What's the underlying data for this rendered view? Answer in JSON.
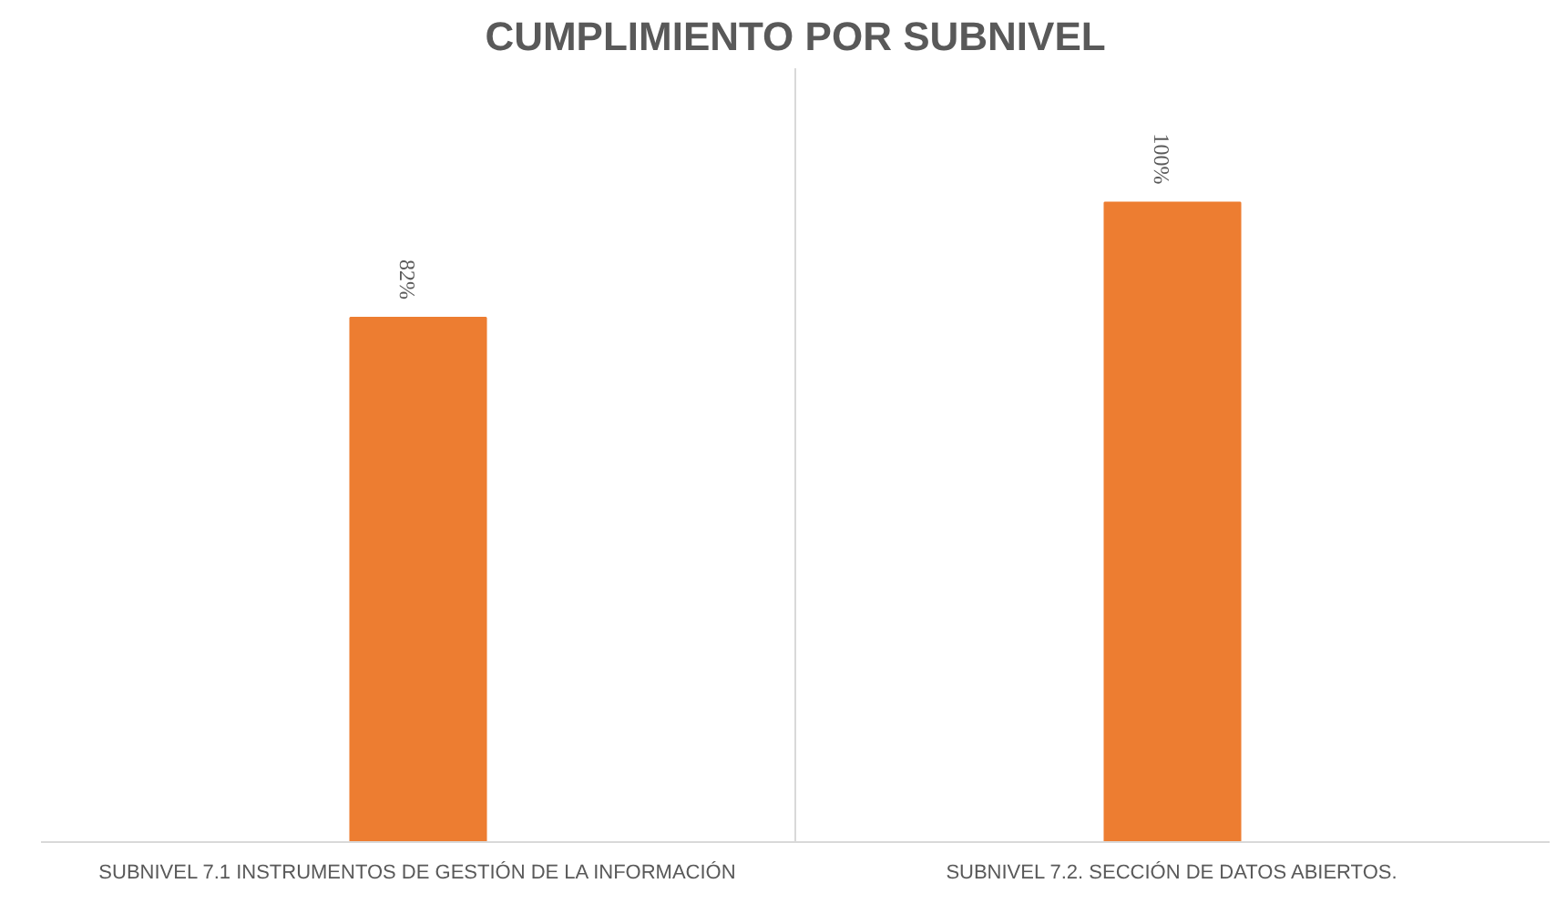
{
  "chart_data": {
    "type": "bar",
    "title": "CUMPLIMIENTO POR SUBNIVEL",
    "categories": [
      "SUBNIVEL 7.1 INSTRUMENTOS DE GESTIÓN DE LA INFORMACIÓN",
      "SUBNIVEL 7.2. SECCIÓN DE DATOS ABIERTOS."
    ],
    "values": [
      82,
      100
    ],
    "value_labels": [
      "82%",
      "100%"
    ],
    "color": "#ed7d31",
    "grid": "x"
  }
}
